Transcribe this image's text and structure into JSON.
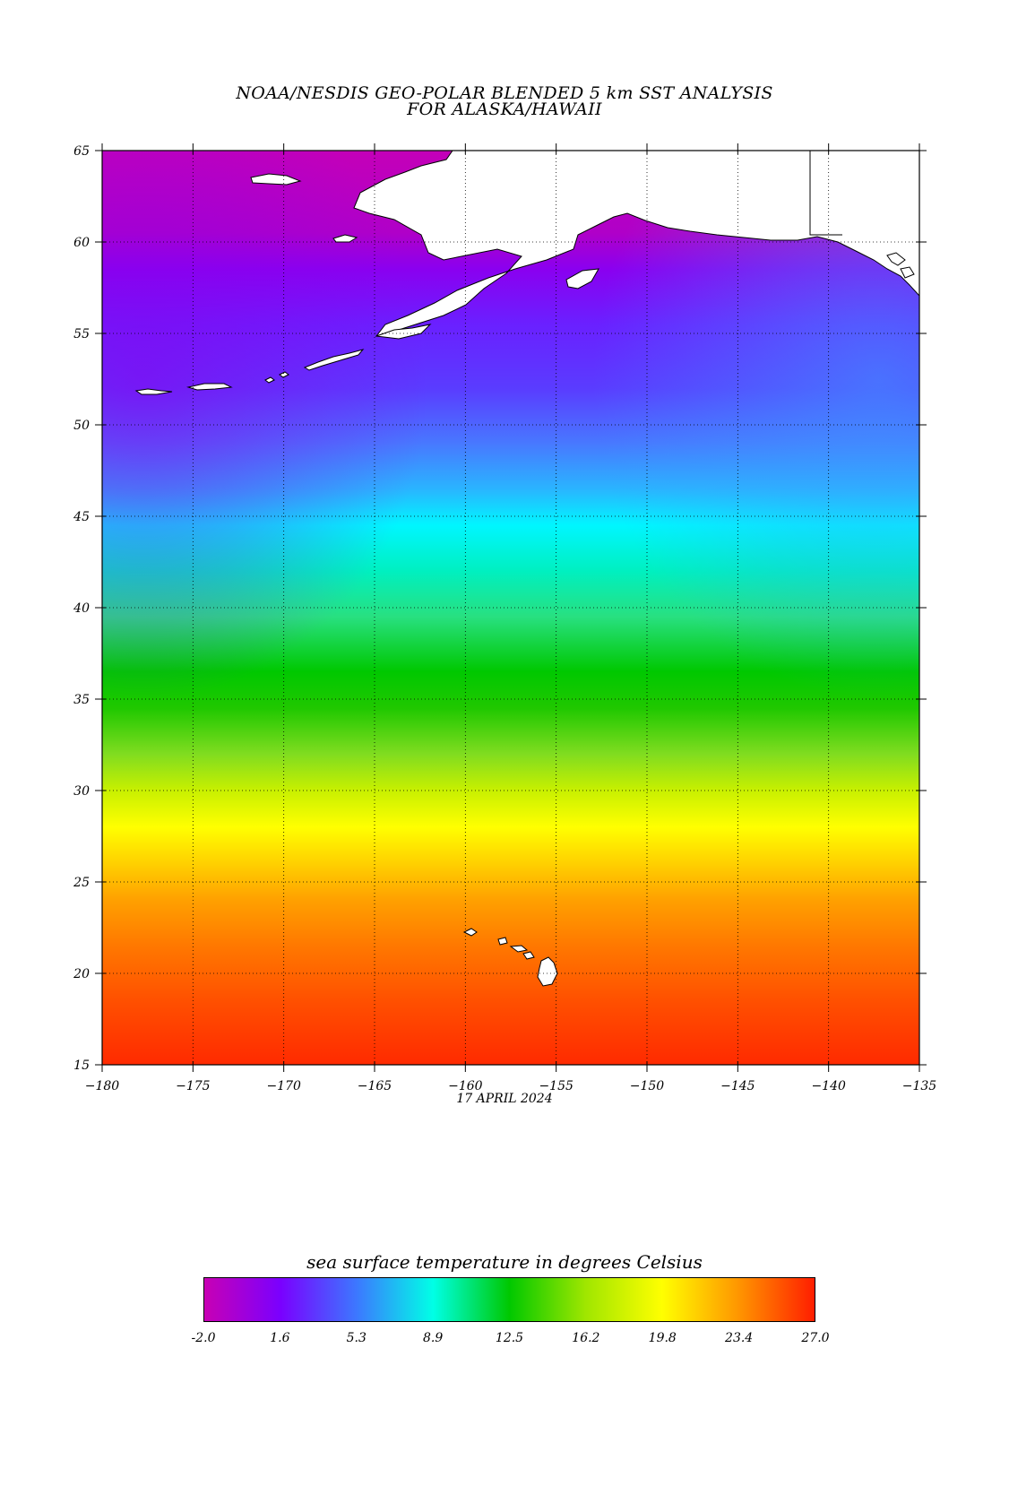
{
  "title": {
    "line1": "NOAA/NESDIS GEO-POLAR BLENDED 5 km SST ANALYSIS",
    "line2": "FOR ALASKA/HAWAII"
  },
  "map": {
    "lon_range": [
      -180,
      -135
    ],
    "lat_range": [
      15,
      65
    ],
    "lon_ticks": [
      "-180",
      "-175",
      "-170",
      "-165",
      "-160",
      "-155",
      "-150",
      "-145",
      "-140",
      "-135"
    ],
    "lat_ticks": [
      "15",
      "20",
      "25",
      "30",
      "35",
      "40",
      "45",
      "50",
      "55",
      "60",
      "65"
    ],
    "gridlines": "dotted",
    "land_color": "#ffffff",
    "coastline_color": "#000000"
  },
  "date": "17 APRIL 2024",
  "colorbar": {
    "title": "sea surface temperature in degrees Celsius",
    "tick_labels": [
      "-2.0",
      "1.6",
      "5.3",
      "8.9",
      "12.5",
      "16.2",
      "19.8",
      "23.4",
      "27.0"
    ],
    "range": [
      -2.0,
      27.0
    ],
    "colors": [
      "#c800b4",
      "#7a00ff",
      "#3c78ff",
      "#00ffe6",
      "#00c800",
      "#a0e600",
      "#ffff00",
      "#ff9600",
      "#ff1e00"
    ]
  }
}
